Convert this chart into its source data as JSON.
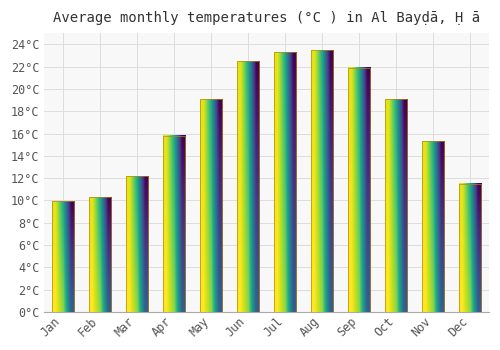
{
  "title": "Average monthly temperatures (°C ) in Al Bayḍā, Ḥ ā",
  "months": [
    "Jan",
    "Feb",
    "Mar",
    "Apr",
    "May",
    "Jun",
    "Jul",
    "Aug",
    "Sep",
    "Oct",
    "Nov",
    "Dec"
  ],
  "values": [
    9.9,
    10.3,
    12.2,
    15.8,
    19.1,
    22.5,
    23.3,
    23.5,
    21.9,
    19.1,
    15.3,
    11.5
  ],
  "bar_color_bottom": "#F5A623",
  "bar_color_top": "#FFD966",
  "bar_edge_color": "#B8860B",
  "background_color": "#FFFFFF",
  "plot_bg_color": "#F8F8F8",
  "grid_color": "#DDDDDD",
  "ylim": [
    0,
    25
  ],
  "ytick_step": 2,
  "title_fontsize": 10,
  "tick_fontsize": 8.5,
  "bar_width": 0.6
}
